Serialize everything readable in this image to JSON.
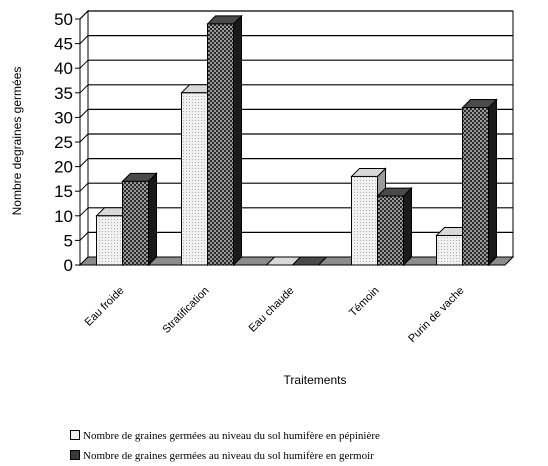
{
  "chart_data": {
    "type": "bar",
    "title": "",
    "xlabel": "Traitements",
    "ylabel": "Nombre degraines germées",
    "ylim": [
      0,
      50
    ],
    "yticks": [
      0,
      5,
      10,
      15,
      20,
      25,
      30,
      35,
      40,
      45,
      50
    ],
    "grid": true,
    "three_d": true,
    "legend_position": "bottom",
    "categories": [
      "Eau froide",
      "Stratification",
      "Eau chaude",
      "Témoin",
      "Purin de vache"
    ],
    "series": [
      {
        "name": "Nombre de graines germées au niveau du sol humifère en pépinière",
        "values": [
          10,
          35,
          0,
          18,
          6
        ],
        "color": "#e4e4e4"
      },
      {
        "name": "Nombre de graines germées au niveau du sol humifère en germoir",
        "values": [
          17,
          49,
          0,
          14,
          32
        ],
        "color": "#3c3c3c"
      }
    ]
  }
}
